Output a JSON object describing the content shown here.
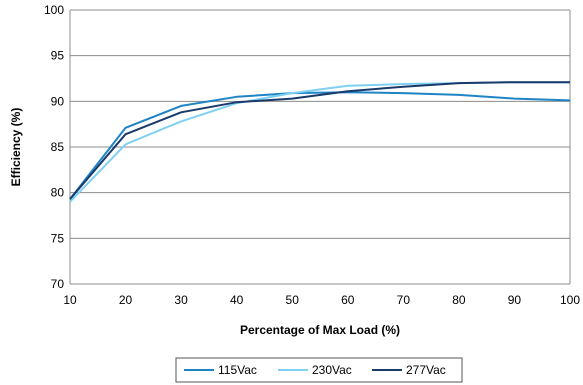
{
  "chart_data": {
    "type": "line",
    "title": "",
    "xlabel": "Percentage of Max Load (%)",
    "ylabel": "Efficiency (%)",
    "xlim": [
      10,
      100
    ],
    "ylim": [
      70,
      100
    ],
    "x_ticks": [
      10,
      20,
      30,
      40,
      50,
      60,
      70,
      80,
      90,
      100
    ],
    "y_ticks": [
      70,
      75,
      80,
      85,
      90,
      95,
      100
    ],
    "grid": "horizontal",
    "legend_position": "bottom",
    "series": [
      {
        "name": "115Vac",
        "color": "#1f84c6",
        "x": [
          10,
          20,
          30,
          40,
          50,
          60,
          70,
          80,
          90,
          100
        ],
        "y": [
          79.3,
          87.1,
          89.5,
          90.5,
          90.9,
          91.0,
          90.9,
          90.7,
          90.3,
          90.1
        ]
      },
      {
        "name": "230Vac",
        "color": "#7fd0f2",
        "x": [
          10,
          20,
          30,
          40,
          50,
          60,
          70,
          80,
          90,
          100
        ],
        "y": [
          79.0,
          85.3,
          87.8,
          89.8,
          90.9,
          91.7,
          91.9,
          92.0,
          92.1,
          92.1
        ]
      },
      {
        "name": "277Vac",
        "color": "#1a3a6b",
        "x": [
          10,
          20,
          30,
          40,
          50,
          60,
          70,
          80,
          90,
          100
        ],
        "y": [
          79.3,
          86.4,
          88.8,
          89.9,
          90.3,
          91.1,
          91.6,
          92.0,
          92.1,
          92.1
        ]
      }
    ]
  }
}
